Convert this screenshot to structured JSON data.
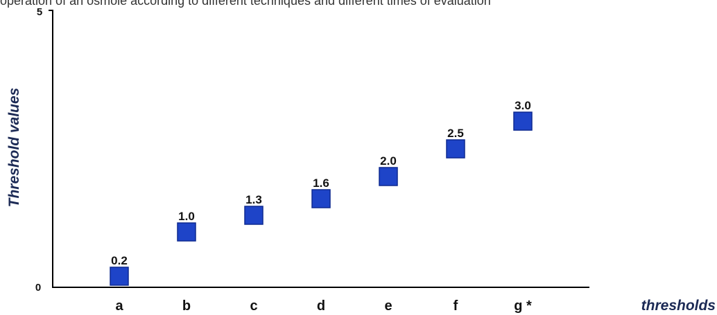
{
  "caption": "operation of an osmole according to different techniques and different times of evaluation",
  "chart_data": {
    "type": "scatter",
    "categories": [
      "a",
      "b",
      "c",
      "d",
      "e",
      "f",
      "g *"
    ],
    "values": [
      0.2,
      1.0,
      1.3,
      1.6,
      2.0,
      2.5,
      3.0
    ],
    "data_labels": [
      "0.2",
      "1.0",
      "1.3",
      "1.6",
      "2.0",
      "2.5",
      "3.0"
    ],
    "xlabel": "thresholds",
    "ylabel": "Threshold values",
    "ylim": [
      0,
      5
    ],
    "yticks": [
      "0",
      "5"
    ],
    "grid": false,
    "marker": "square",
    "colors": {
      "marker": "#1e44c8",
      "marker_edge": "#0e2a90",
      "axis": "#000000",
      "axis_title": "#1c2a55",
      "text": "#111111"
    }
  }
}
